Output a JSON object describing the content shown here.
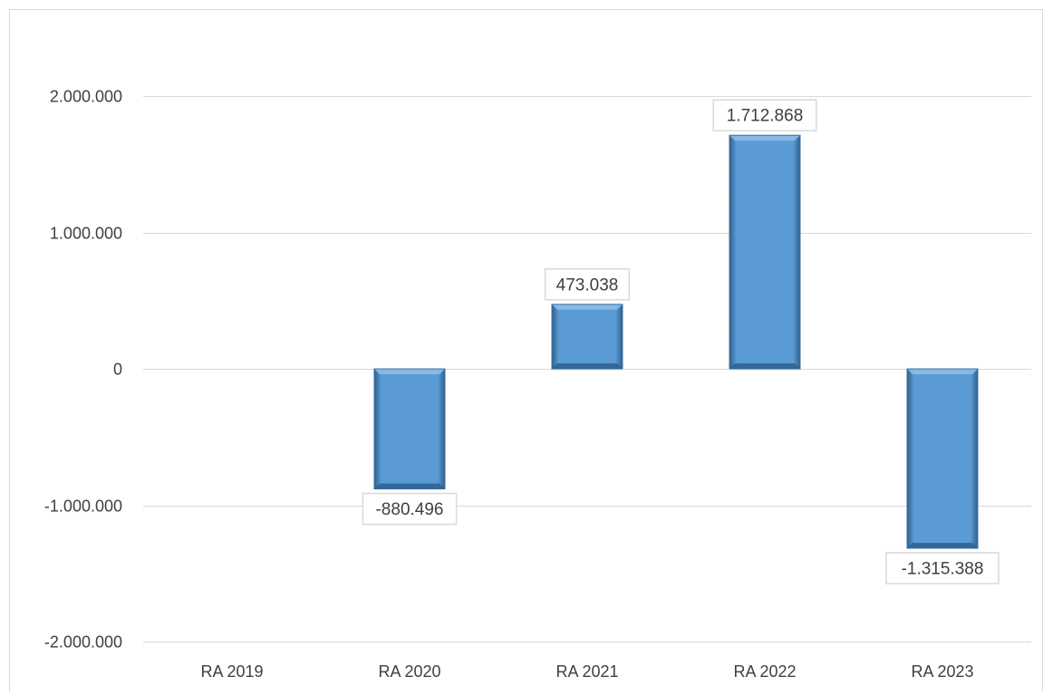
{
  "chart_data": {
    "type": "bar",
    "title": "",
    "xlabel": "",
    "ylabel": "",
    "categories": [
      "RA 2019",
      "RA 2020",
      "RA 2021",
      "RA 2022",
      "RA 2023"
    ],
    "values": [
      0,
      -880496,
      473038,
      1712868,
      -1315388
    ],
    "data_labels": [
      "",
      "-880.496",
      "473.038",
      "1.712.868",
      "-1.315.388"
    ],
    "ylim": [
      -2000000,
      2000000
    ],
    "yticks": [
      2000000,
      1000000,
      0,
      -1000000,
      -2000000
    ],
    "ytick_labels": [
      "2.000.000",
      "1.000.000",
      "0",
      "-1.000.000",
      "-2.000.000"
    ],
    "grid": true,
    "legend": "none",
    "colors": {
      "bar_fill": "#5b9bd5",
      "bar_light": "#8dbbe8",
      "bar_dark": "#2e5f8f",
      "gridline": "#d9d9d9",
      "tick_text": "#404040",
      "label_border": "#d9d9d9"
    }
  }
}
